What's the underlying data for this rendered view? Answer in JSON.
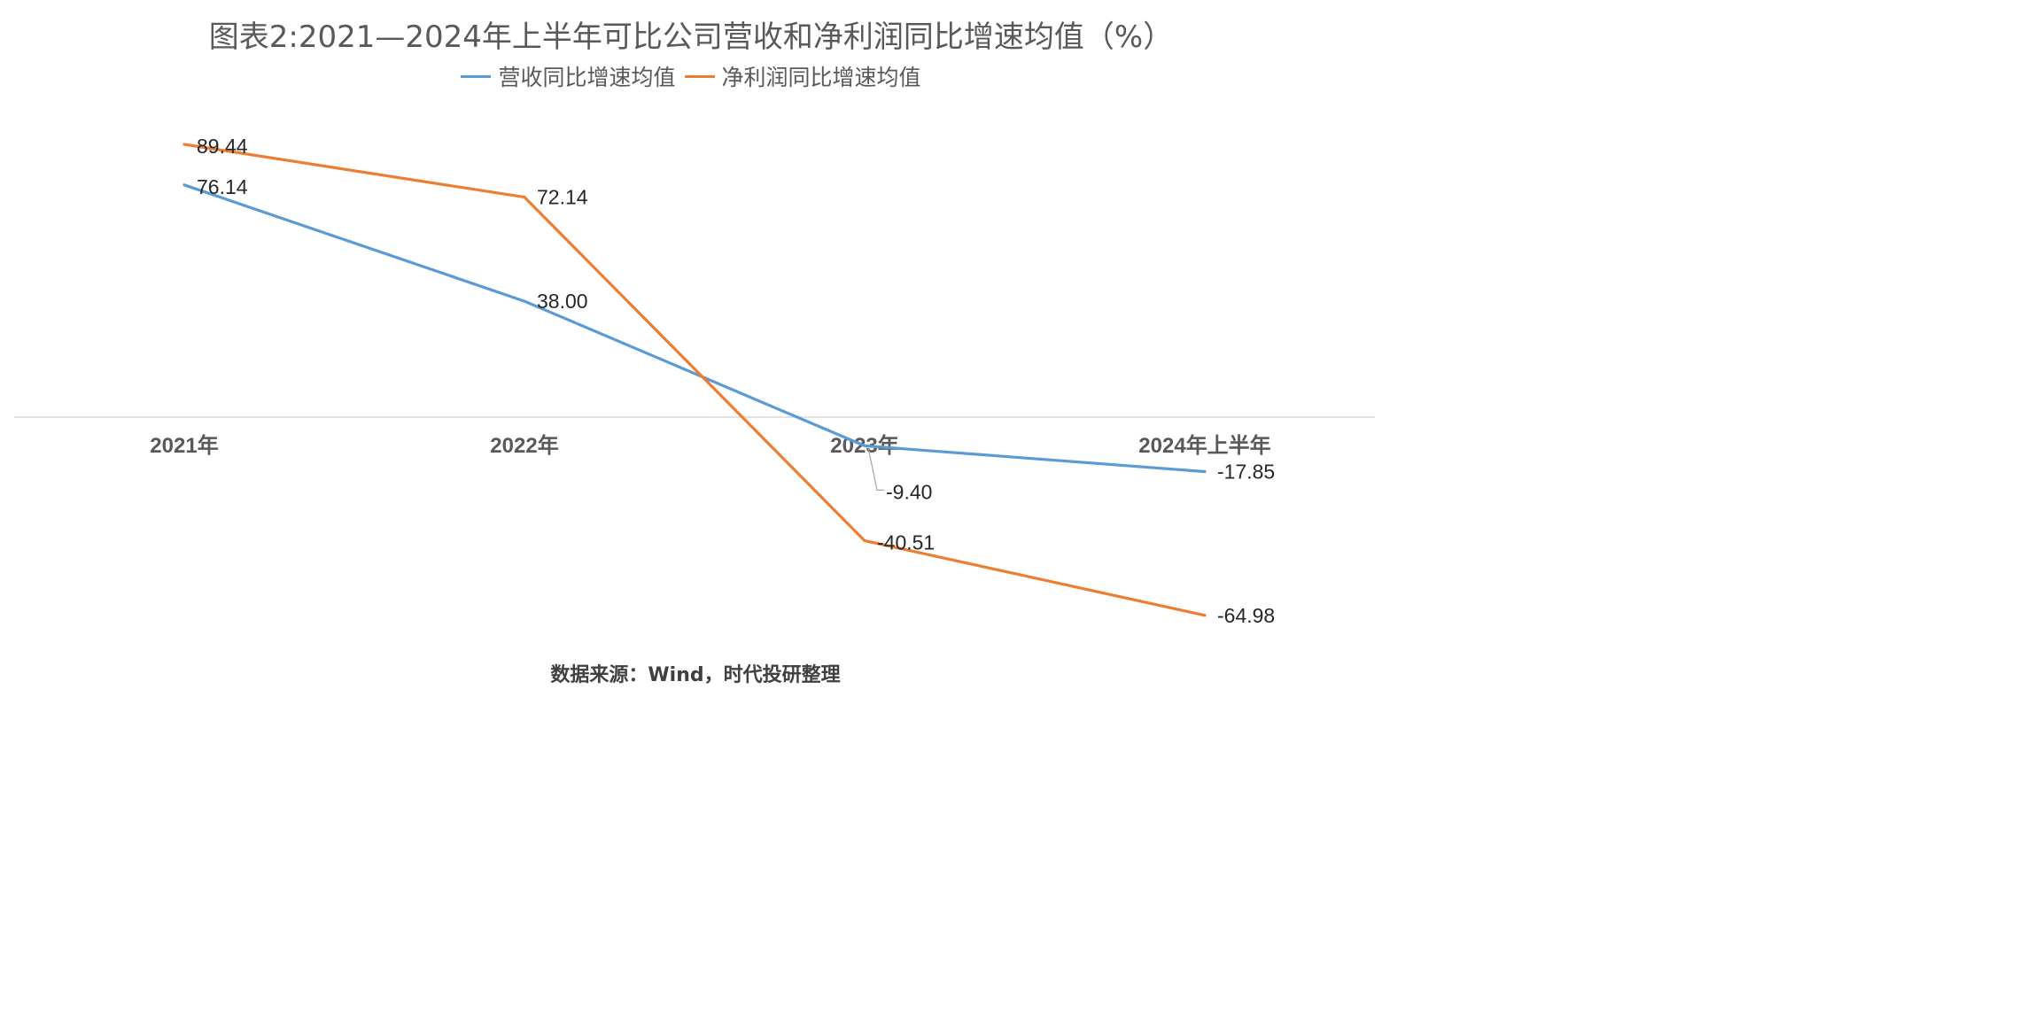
{
  "chart_data": {
    "type": "line",
    "title": "图表2:2021—2024年上半年可比公司营收和净利润同比增速均值（%）",
    "categories": [
      "2021年",
      "2022年",
      "2023年",
      "2024年上半年"
    ],
    "series": [
      {
        "name": "营收同比增速均值",
        "color": "#5B9BD5",
        "values": [
          76.14,
          38.0,
          -9.4,
          -17.85
        ],
        "labels": [
          "76.14",
          "38.00",
          "-9.40",
          "-17.85"
        ]
      },
      {
        "name": "净利润同比增速均值",
        "color": "#ED7D31",
        "values": [
          89.44,
          72.14,
          -40.51,
          -64.98
        ],
        "labels": [
          "89.44",
          "72.14",
          "-40.51",
          "-64.98"
        ]
      }
    ],
    "ylim": [
      -80,
      100
    ],
    "grid": false,
    "legend": "top-center",
    "axis_line_color": "#D9D9D9"
  },
  "source": "数据来源：Wind，时代投研整理"
}
